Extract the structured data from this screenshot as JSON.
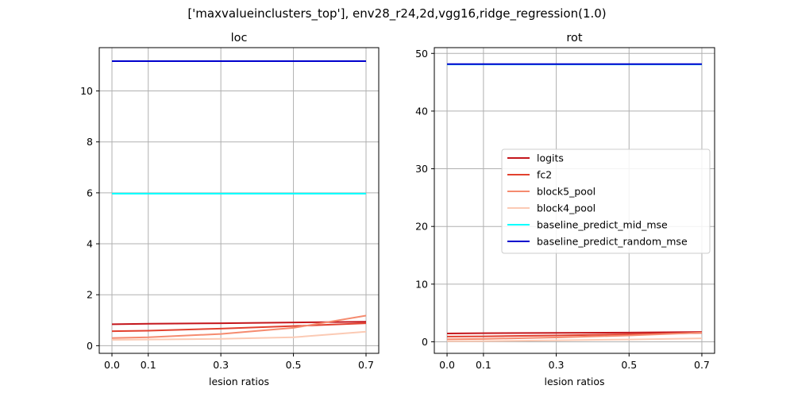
{
  "figure_title": "['maxvalueinclusters_top'], env28_r24,2d,vgg16,ridge_regression(1.0)",
  "chart_data": [
    {
      "type": "line",
      "title": "loc",
      "xlabel": "lesion ratios",
      "ylabel": "",
      "x": [
        0.0,
        0.1,
        0.3,
        0.5,
        0.7
      ],
      "xticks": [
        "0.0",
        "0.1",
        "0.3",
        "0.5",
        "0.7"
      ],
      "xlim": [
        -0.035,
        0.735
      ],
      "ylim": [
        -0.3,
        11.7
      ],
      "yticks": [
        "0",
        "2",
        "4",
        "6",
        "8",
        "10"
      ],
      "grid": true,
      "series": [
        {
          "name": "logits",
          "color": "#c4161c",
          "values": [
            0.84,
            0.86,
            0.88,
            0.91,
            0.94
          ]
        },
        {
          "name": "fc2",
          "color": "#e2412f",
          "values": [
            0.57,
            0.59,
            0.67,
            0.77,
            0.88
          ]
        },
        {
          "name": "block5_pool",
          "color": "#f58b6f",
          "values": [
            0.3,
            0.33,
            0.46,
            0.7,
            1.18
          ]
        },
        {
          "name": "block4_pool",
          "color": "#fbcab4",
          "values": [
            0.23,
            0.24,
            0.27,
            0.33,
            0.55
          ]
        },
        {
          "name": "baseline_predict_mid_mse",
          "color": "#00ffff",
          "values": [
            5.97,
            5.97,
            5.97,
            5.97,
            5.97
          ]
        },
        {
          "name": "baseline_predict_random_mse",
          "color": "#0000cd",
          "values": [
            11.17,
            11.17,
            11.17,
            11.17,
            11.17
          ]
        }
      ]
    },
    {
      "type": "line",
      "title": "rot",
      "xlabel": "lesion ratios",
      "ylabel": "",
      "x": [
        0.0,
        0.1,
        0.3,
        0.5,
        0.7
      ],
      "xticks": [
        "0.0",
        "0.1",
        "0.3",
        "0.5",
        "0.7"
      ],
      "xlim": [
        -0.035,
        0.735
      ],
      "ylim": [
        -2.0,
        51.0
      ],
      "yticks": [
        "0",
        "10",
        "20",
        "30",
        "40",
        "50"
      ],
      "grid": true,
      "legend": "center-right",
      "series": [
        {
          "name": "logits",
          "color": "#c4161c",
          "values": [
            1.45,
            1.5,
            1.55,
            1.6,
            1.7
          ]
        },
        {
          "name": "fc2",
          "color": "#e2412f",
          "values": [
            0.9,
            0.95,
            1.1,
            1.3,
            1.55
          ]
        },
        {
          "name": "block5_pool",
          "color": "#f58b6f",
          "values": [
            0.45,
            0.5,
            0.75,
            1.1,
            1.6
          ]
        },
        {
          "name": "block4_pool",
          "color": "#fbcab4",
          "values": [
            0.1,
            0.12,
            0.25,
            0.4,
            0.6
          ]
        },
        {
          "name": "baseline_predict_mid_mse",
          "color": "#00ffff",
          "values": [
            48.1,
            48.1,
            48.1,
            48.1,
            48.1
          ]
        },
        {
          "name": "baseline_predict_random_mse",
          "color": "#0000cd",
          "values": [
            48.15,
            48.15,
            48.15,
            48.15,
            48.15
          ]
        }
      ]
    }
  ]
}
